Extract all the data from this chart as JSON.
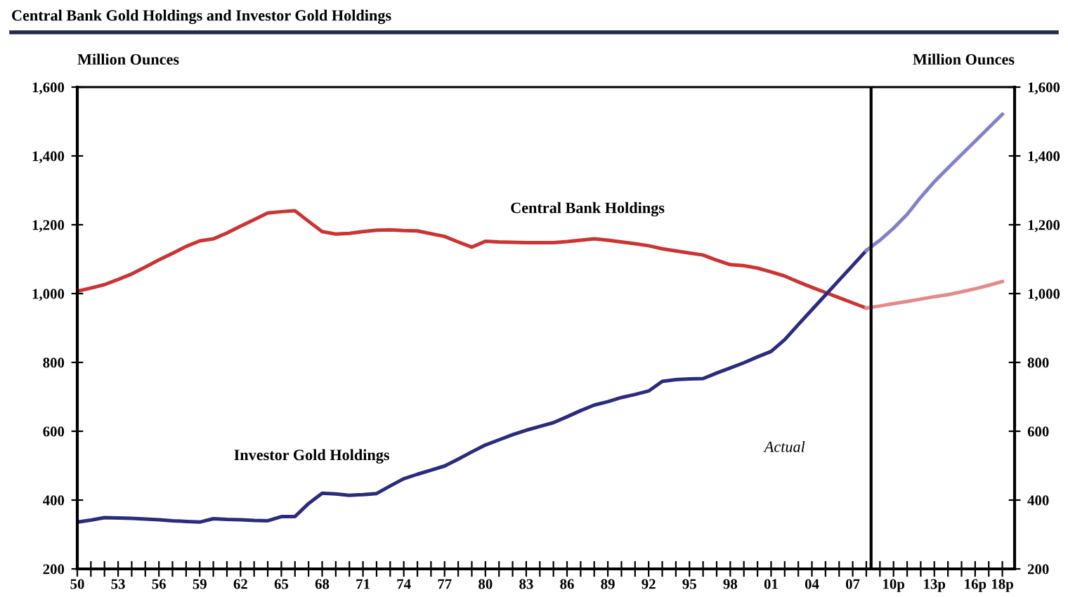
{
  "chart_data": {
    "type": "line",
    "title": "Central Bank Gold Holdings and Investor Gold Holdings",
    "ylabel": "Million Ounces",
    "y2label": "Million Ounces",
    "categories": [
      "50",
      null,
      null,
      "53",
      null,
      null,
      "56",
      null,
      null,
      "59",
      null,
      null,
      "62",
      null,
      null,
      "65",
      null,
      null,
      "68",
      null,
      null,
      "71",
      null,
      null,
      "74",
      null,
      null,
      "77",
      null,
      null,
      "80",
      null,
      null,
      "83",
      null,
      null,
      "86",
      null,
      null,
      "89",
      null,
      null,
      "92",
      null,
      null,
      "95",
      null,
      null,
      "98",
      null,
      null,
      "01",
      null,
      null,
      "04",
      null,
      null,
      "07",
      null,
      null,
      "10p",
      null,
      null,
      "13p",
      null,
      null,
      "16p",
      null,
      "18p"
    ],
    "series": [
      {
        "name": "Central Bank Holdings",
        "color": "#cc3333",
        "values": [
          1007,
          1016,
          1026,
          1041,
          1057,
          1077,
          1098,
          1117,
          1137,
          1153,
          1159,
          1176,
          1196,
          1215,
          1234,
          1238,
          1241,
          1210,
          1180,
          1173,
          1175,
          1180,
          1184,
          1185,
          1183,
          1182,
          1174,
          1166,
          1150,
          1135,
          1152,
          1150,
          1149,
          1148,
          1148,
          1148,
          1151,
          1155,
          1159,
          1155,
          1150,
          1145,
          1139,
          1130,
          1124,
          1118,
          1112,
          1097,
          1084,
          1081,
          1074,
          1063,
          1051,
          1034,
          1018,
          1003,
          988,
          973,
          958,
          null,
          null,
          null,
          null,
          null,
          null,
          null,
          null,
          null,
          null
        ]
      },
      {
        "color": "#e58a8a",
        "values": [
          null,
          null,
          null,
          null,
          null,
          null,
          null,
          null,
          null,
          null,
          null,
          null,
          null,
          null,
          null,
          null,
          null,
          null,
          null,
          null,
          null,
          null,
          null,
          null,
          null,
          null,
          null,
          null,
          null,
          null,
          null,
          null,
          null,
          null,
          null,
          null,
          null,
          null,
          null,
          null,
          null,
          null,
          null,
          null,
          null,
          null,
          null,
          null,
          null,
          null,
          null,
          null,
          null,
          null,
          null,
          null,
          null,
          null,
          958,
          964,
          971,
          977,
          984,
          991,
          997,
          1005,
          1014,
          1024,
          1035
        ]
      },
      {
        "name": "Investor Gold Holdings",
        "color": "#2b2b80",
        "values": [
          336,
          342,
          349,
          348,
          347,
          345,
          343,
          340,
          338,
          336,
          346,
          344,
          343,
          341,
          340,
          352,
          352,
          390,
          420,
          418,
          414,
          416,
          419,
          441,
          462,
          475,
          487,
          499,
          519,
          540,
          560,
          575,
          590,
          603,
          614,
          625,
          642,
          660,
          676,
          686,
          698,
          707,
          717,
          745,
          750,
          752,
          753,
          769,
          784,
          799,
          816,
          832,
          866,
          910,
          953,
          996,
          1039,
          1082,
          1125,
          null,
          null,
          null,
          null,
          null,
          null,
          null,
          null,
          null,
          null
        ]
      },
      {
        "color": "#8282c8",
        "values": [
          null,
          null,
          null,
          null,
          null,
          null,
          null,
          null,
          null,
          null,
          null,
          null,
          null,
          null,
          null,
          null,
          null,
          null,
          null,
          null,
          null,
          null,
          null,
          null,
          null,
          null,
          null,
          null,
          null,
          null,
          null,
          null,
          null,
          null,
          null,
          null,
          null,
          null,
          null,
          null,
          null,
          null,
          null,
          null,
          null,
          null,
          null,
          null,
          null,
          null,
          null,
          null,
          null,
          null,
          null,
          null,
          null,
          null,
          1125,
          1155,
          1190,
          1230,
          1280,
          1325,
          1365,
          1404,
          1443,
          1482,
          1521
        ]
      }
    ],
    "ylim": [
      200,
      1600
    ],
    "yticks": [
      {
        "value": 200,
        "label": "200"
      },
      {
        "value": 400,
        "label": "400"
      },
      {
        "value": 600,
        "label": "600"
      },
      {
        "value": 800,
        "label": "800"
      },
      {
        "value": 1000,
        "label": "1,000"
      },
      {
        "value": 1200,
        "label": "1,200"
      },
      {
        "value": 1400,
        "label": "1,400"
      },
      {
        "value": 1600,
        "label": "1,600"
      }
    ],
    "y2lim": [
      200,
      1600
    ],
    "y2ticks": [
      {
        "value": 200,
        "label": "200"
      },
      {
        "value": 400,
        "label": "400"
      },
      {
        "value": 600,
        "label": "600"
      },
      {
        "value": 800,
        "label": "800"
      },
      {
        "value": 1000,
        "label": "1,000"
      },
      {
        "value": 1200,
        "label": "1,200"
      },
      {
        "value": 1400,
        "label": "1,400"
      },
      {
        "value": 1600,
        "label": "1,600"
      }
    ],
    "annotations": [
      "Actual"
    ],
    "grid": false,
    "legend": false
  }
}
